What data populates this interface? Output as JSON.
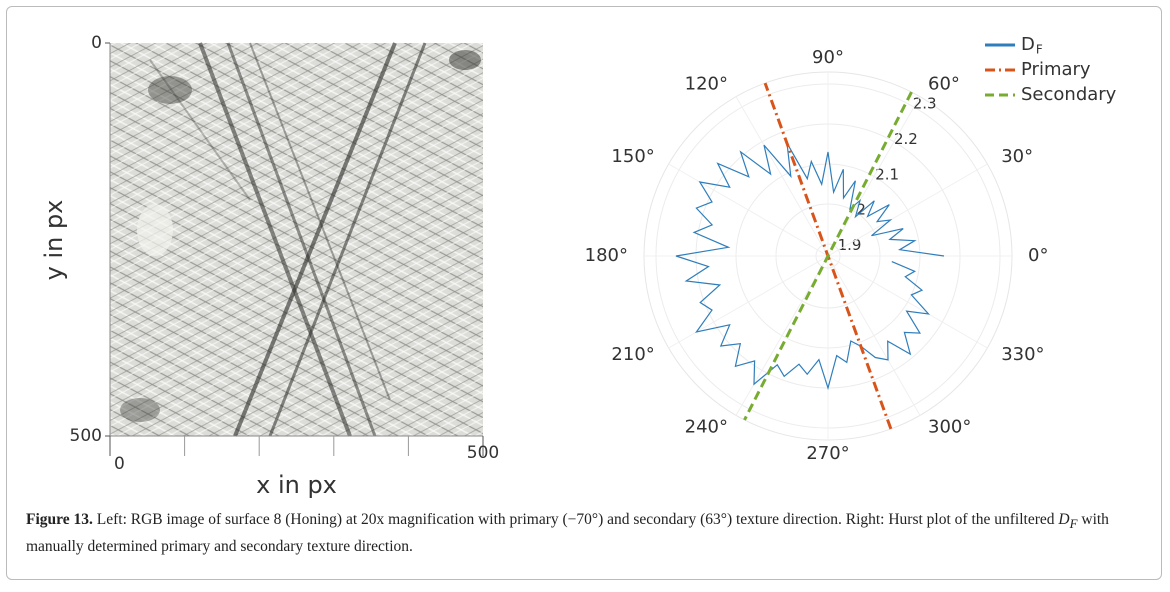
{
  "chart_data": [
    {
      "type": "image",
      "xlabel": "x in px",
      "ylabel": "y in px",
      "xlim": [
        0,
        500
      ],
      "ylim": [
        500,
        0
      ],
      "xticks": [
        0,
        500
      ],
      "yticks": [
        0,
        500
      ],
      "minor_xticks": [
        100,
        200,
        300,
        400
      ]
    },
    {
      "type": "polar",
      "rlim": [
        1.87,
        2.33
      ],
      "rticks": [
        1.9,
        2,
        2.1,
        2.2,
        2.3
      ],
      "angle_ticks": [
        {
          "value": 0,
          "label": "0°"
        },
        {
          "value": 30,
          "label": "30°"
        },
        {
          "value": 60,
          "label": "60°"
        },
        {
          "value": 90,
          "label": "90°"
        },
        {
          "value": 120,
          "label": "120°"
        },
        {
          "value": 150,
          "label": "150°"
        },
        {
          "value": 180,
          "label": "180°"
        },
        {
          "value": 210,
          "label": "210°"
        },
        {
          "value": 240,
          "label": "240°"
        },
        {
          "value": 270,
          "label": "270°"
        },
        {
          "value": 300,
          "label": "300°"
        },
        {
          "value": 330,
          "label": "330°"
        }
      ],
      "legend": "top-right",
      "series": [
        {
          "name": "D",
          "name_subscript": "F",
          "color": "#2f7ebc",
          "style": "solid",
          "theta": [
            0,
            5,
            10,
            15,
            20,
            25,
            30,
            35,
            40,
            45,
            50,
            55,
            60,
            65,
            70,
            75,
            80,
            85,
            90,
            95,
            100,
            105,
            110,
            115,
            120,
            125,
            130,
            135,
            140,
            145,
            150,
            155,
            160,
            165,
            170,
            175,
            180,
            185,
            190,
            195,
            200,
            205,
            210,
            215,
            220,
            225,
            230,
            235,
            240,
            245,
            250,
            255,
            260,
            265,
            270,
            275,
            280,
            285,
            290,
            295,
            300,
            305,
            310,
            315,
            320,
            325,
            330,
            335,
            340,
            345,
            350,
            355
          ],
          "values": [
            2.16,
            2.05,
            2.09,
            2.03,
            2.07,
            1.99,
            2.05,
            2.02,
            2.07,
            2.01,
            2.05,
            1.99,
            2.03,
            2.0,
            2.07,
            2.02,
            2.09,
            2.03,
            2.13,
            2.05,
            2.11,
            2.07,
            2.17,
            2.09,
            2.19,
            2.12,
            2.21,
            2.15,
            2.23,
            2.17,
            2.24,
            2.19,
            2.22,
            2.17,
            2.21,
            2.12,
            2.25,
            2.17,
            2.23,
            2.15,
            2.21,
            2.19,
            2.25,
            2.17,
            2.22,
            2.18,
            2.23,
            2.19,
            2.24,
            2.17,
            2.19,
            2.15,
            2.17,
            2.13,
            2.2,
            2.12,
            2.14,
            2.09,
            2.11,
            2.15,
            2.17,
            2.13,
            2.19,
            2.14,
            2.17,
            2.11,
            2.16,
            2.1,
            2.12,
            2.07,
            2.09,
            2.03
          ]
        },
        {
          "name": "Primary",
          "color": "#d9541a",
          "style": "dashdot",
          "theta": [
            -70,
            110
          ],
          "values": [
            2.33,
            2.33
          ]
        },
        {
          "name": "Secondary",
          "color": "#77ac30",
          "style": "dash",
          "theta": [
            63,
            243
          ],
          "values": [
            2.33,
            2.33
          ]
        }
      ]
    }
  ],
  "caption": {
    "label": "Figure 13.",
    "text": " Left: RGB image of surface 8 (Honing) at 20x magnification with primary (−70°) and secondary (63°) texture direction. Right: Hurst plot of the unfiltered ",
    "italic": "D",
    "subscript": "F",
    "text_end": " with manually determined primary and secondary texture direction."
  }
}
